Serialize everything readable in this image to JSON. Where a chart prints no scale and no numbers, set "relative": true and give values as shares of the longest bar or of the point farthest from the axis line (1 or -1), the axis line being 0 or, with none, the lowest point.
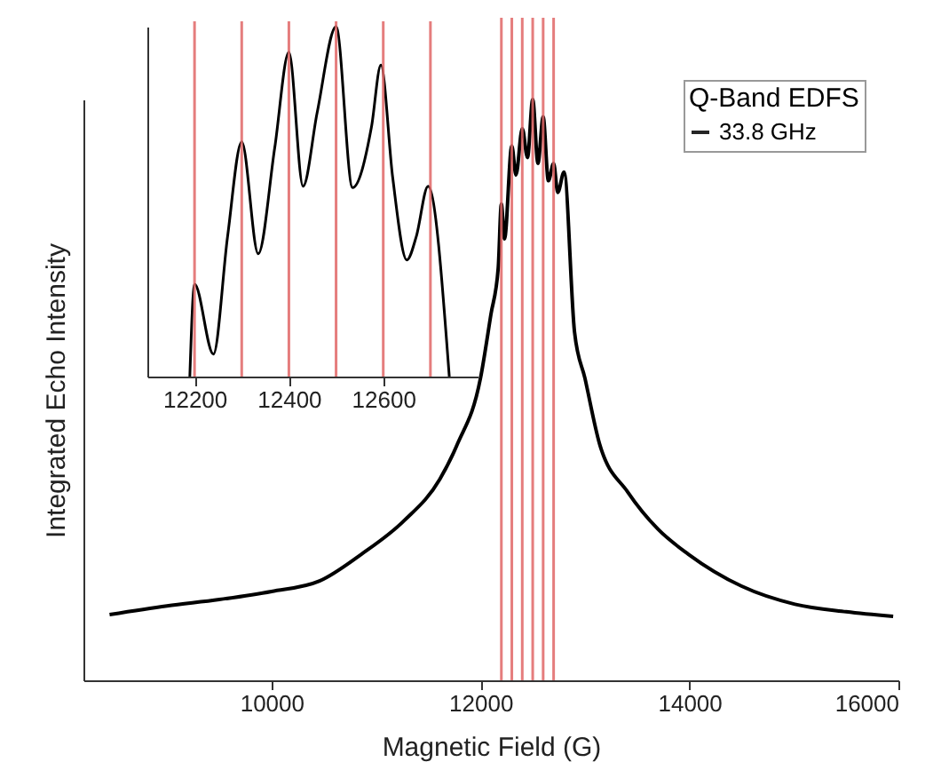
{
  "chart_data": [
    {
      "type": "line",
      "xlabel": "Magnetic Field (G)",
      "ylabel": "Integrated Echo Intensity",
      "legend_title": "Q-Band EDFS",
      "relative": true,
      "grid": false,
      "legend": "top right",
      "marker": "none",
      "line_style": "solid",
      "xlim": [
        8200,
        16000
      ],
      "xticks": [
        10000,
        12000,
        14000,
        16000
      ],
      "series": [
        {
          "name": "33.8 GHz",
          "color": "#000000",
          "x": [
            8450,
            9000,
            9500,
            10000,
            10460,
            10860,
            11270,
            11610,
            11780,
            12000,
            12100,
            12170,
            12200,
            12230,
            12300,
            12340,
            12400,
            12450,
            12500,
            12550,
            12600,
            12650,
            12700,
            12740,
            12800,
            12900,
            13000,
            13140,
            13410,
            13700,
            13990,
            14500,
            15010,
            15500,
            15950
          ],
          "values": [
            0.113,
            0.128,
            0.139,
            0.153,
            0.171,
            0.217,
            0.275,
            0.346,
            0.407,
            0.52,
            0.63,
            0.71,
            0.82,
            0.76,
            0.92,
            0.87,
            0.95,
            0.9,
            1.0,
            0.89,
            0.97,
            0.86,
            0.89,
            0.84,
            0.875,
            0.6,
            0.52,
            0.407,
            0.324,
            0.26,
            0.217,
            0.162,
            0.131,
            0.118,
            0.11
          ]
        }
      ],
      "ref_lines": [
        {
          "axis": "x",
          "value": 12200,
          "color": "#e06666"
        },
        {
          "axis": "x",
          "value": 12300,
          "color": "#e06666"
        },
        {
          "axis": "x",
          "value": 12400,
          "color": "#e06666"
        },
        {
          "axis": "x",
          "value": 12500,
          "color": "#e06666"
        },
        {
          "axis": "x",
          "value": 12600,
          "color": "#e06666"
        },
        {
          "axis": "x",
          "value": 12700,
          "color": "#e06666"
        }
      ]
    },
    {
      "type": "line",
      "relative": true,
      "grid": false,
      "marker": "none",
      "line_style": "solid",
      "xlim": [
        12100,
        12800
      ],
      "xticks": [
        12200,
        12400,
        12600
      ],
      "series": [
        {
          "color": "#000000",
          "x": [
            12190,
            12200,
            12240,
            12270,
            12300,
            12335,
            12370,
            12400,
            12430,
            12460,
            12500,
            12535,
            12575,
            12595,
            12620,
            12650,
            12670,
            12695,
            12740
          ],
          "values": [
            0,
            0.264,
            0.064,
            0.4,
            0.671,
            0.351,
            0.654,
            0.927,
            0.544,
            0.755,
            1.0,
            0.54,
            0.713,
            0.89,
            0.569,
            0.333,
            0.4,
            0.544,
            0
          ]
        }
      ],
      "ref_lines": [
        {
          "axis": "x",
          "value": 12200,
          "color": "#e06666"
        },
        {
          "axis": "x",
          "value": 12300,
          "color": "#e06666"
        },
        {
          "axis": "x",
          "value": 12400,
          "color": "#e06666"
        },
        {
          "axis": "x",
          "value": 12500,
          "color": "#e06666"
        },
        {
          "axis": "x",
          "value": 12600,
          "color": "#e06666"
        },
        {
          "axis": "x",
          "value": 12700,
          "color": "#e06666"
        }
      ]
    }
  ]
}
